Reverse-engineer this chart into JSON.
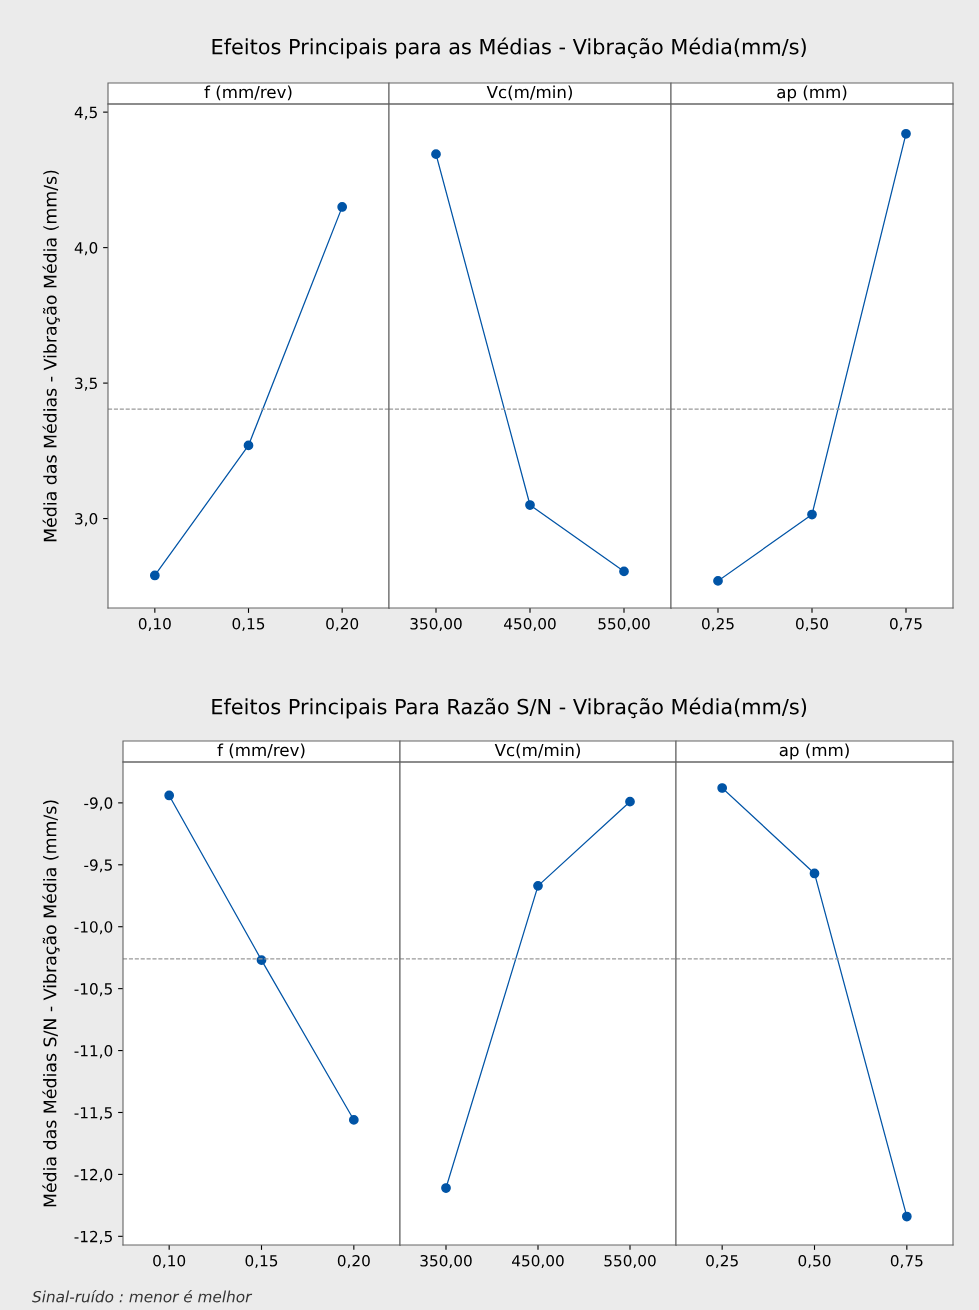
{
  "chart_data": [
    {
      "type": "other",
      "title": "Efeitos Principais para as Médias - Vibração Média(mm/s)"
    },
    {
      "type": "line",
      "title": "f (mm/rev)",
      "ylabel": "Média das Médias - Vibração Média (mm/s)",
      "categories": [
        "0,10",
        "0,15",
        "0,20"
      ],
      "series": [
        {
          "color": "#0054a6",
          "values": [
            2.79,
            3.27,
            4.15
          ]
        }
      ],
      "ylim": [
        2.67,
        4.53
      ],
      "yticks": [
        {
          "value": 3.0,
          "label": "3,0"
        },
        {
          "value": 3.5,
          "label": "3,5"
        },
        {
          "value": 4.0,
          "label": "4,0"
        },
        {
          "value": 4.5,
          "label": "4,5"
        }
      ],
      "ref_lines": [
        {
          "axis": "y",
          "value": 3.404,
          "color": "#999999",
          "line_style": "dashed"
        }
      ],
      "marker": "circle",
      "line_style": "solid",
      "grid": false
    },
    {
      "type": "line",
      "title": "Vc(m/min)",
      "categories": [
        "350,00",
        "450,00",
        "550,00"
      ],
      "series": [
        {
          "color": "#0054a6",
          "values": [
            4.345,
            3.05,
            2.805
          ]
        }
      ],
      "ylim": [
        2.67,
        4.53
      ],
      "tick_labels": "x",
      "ref_lines": [
        {
          "axis": "y",
          "value": 3.404,
          "color": "#999999",
          "line_style": "dashed"
        }
      ],
      "marker": "circle",
      "line_style": "solid",
      "grid": false
    },
    {
      "type": "line",
      "title": "ap (mm)",
      "categories": [
        "0,25",
        "0,50",
        "0,75"
      ],
      "series": [
        {
          "color": "#0054a6",
          "values": [
            2.77,
            3.015,
            4.42
          ]
        }
      ],
      "ylim": [
        2.67,
        4.53
      ],
      "tick_labels": "x",
      "ref_lines": [
        {
          "axis": "y",
          "value": 3.404,
          "color": "#999999",
          "line_style": "dashed"
        }
      ],
      "marker": "circle",
      "line_style": "solid",
      "grid": false
    },
    {
      "type": "other",
      "title": "Efeitos Principais Para Razão S/N - Vibração Média(mm/s)",
      "annotations": [
        "Sinal-ruído : menor é melhor"
      ]
    },
    {
      "type": "line",
      "title": "f (mm/rev)",
      "ylabel": "Média das Médias S/N - Vibração Média (mm/s)",
      "categories": [
        "0,10",
        "0,15",
        "0,20"
      ],
      "series": [
        {
          "color": "#0054a6",
          "values": [
            -8.94,
            -10.27,
            -11.56
          ]
        }
      ],
      "ylim": [
        -12.57,
        -8.67
      ],
      "yticks": [
        {
          "value": -9.0,
          "label": "-9,0"
        },
        {
          "value": -9.5,
          "label": "-9,5"
        },
        {
          "value": -10.0,
          "label": "-10,0"
        },
        {
          "value": -10.5,
          "label": "-10,5"
        },
        {
          "value": -11.0,
          "label": "-11,0"
        },
        {
          "value": -11.5,
          "label": "-11,5"
        },
        {
          "value": -12.0,
          "label": "-12,0"
        },
        {
          "value": -12.5,
          "label": "-12,5"
        }
      ],
      "ref_lines": [
        {
          "axis": "y",
          "value": -10.26,
          "color": "#999999",
          "line_style": "dashed"
        }
      ],
      "marker": "circle",
      "line_style": "solid",
      "grid": false
    },
    {
      "type": "line",
      "title": "Vc(m/min)",
      "categories": [
        "350,00",
        "450,00",
        "550,00"
      ],
      "series": [
        {
          "color": "#0054a6",
          "values": [
            -12.11,
            -9.67,
            -8.99
          ]
        }
      ],
      "ylim": [
        -12.57,
        -8.67
      ],
      "tick_labels": "x",
      "ref_lines": [
        {
          "axis": "y",
          "value": -10.26,
          "color": "#999999",
          "line_style": "dashed"
        }
      ],
      "marker": "circle",
      "line_style": "solid",
      "grid": false
    },
    {
      "type": "line",
      "title": "ap (mm)",
      "categories": [
        "0,25",
        "0,50",
        "0,75"
      ],
      "series": [
        {
          "color": "#0054a6",
          "values": [
            -8.88,
            -9.57,
            -12.34
          ]
        }
      ],
      "ylim": [
        -12.57,
        -8.67
      ],
      "tick_labels": "x",
      "ref_lines": [
        {
          "axis": "y",
          "value": -10.26,
          "color": "#999999",
          "line_style": "dashed"
        }
      ],
      "marker": "circle",
      "line_style": "solid",
      "grid": false
    }
  ]
}
